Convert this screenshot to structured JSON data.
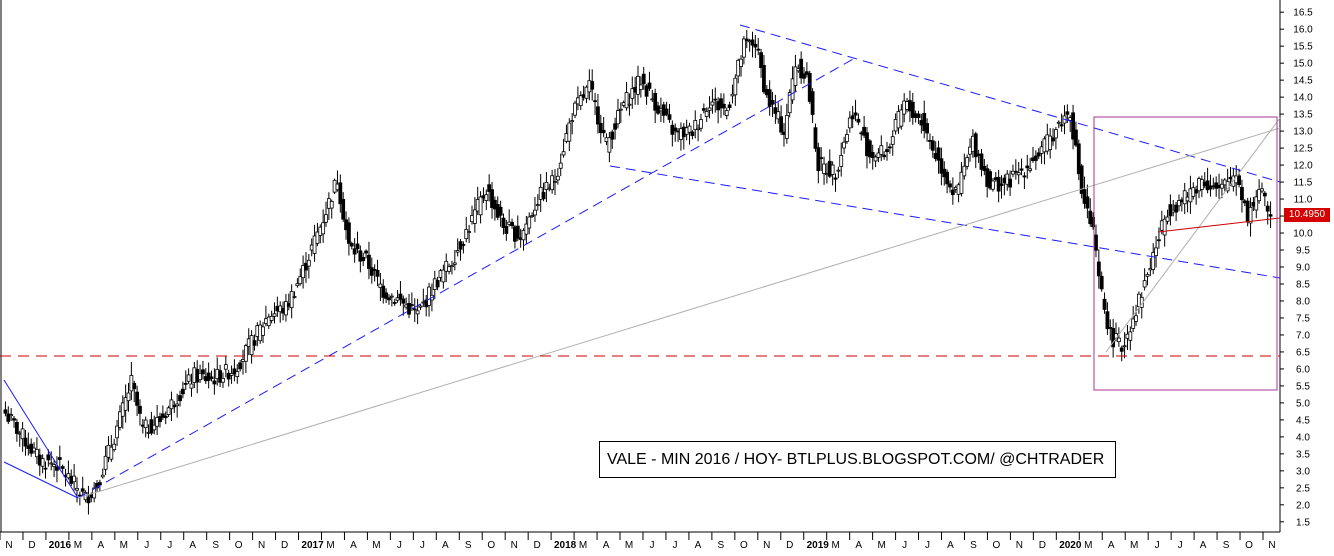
{
  "title": "VALE - MIN 2016 / HOY- BTLPLUS.BLOGSPOT.COM/ @CHTRADER",
  "last_price_label": "10.4950",
  "colors": {
    "up_candle": "#ffffff",
    "down_candle": "#000000",
    "trendline_blue": "#1a1aff",
    "support_red": "#cc0000",
    "box_magenta": "#aa3399",
    "gray_line": "#b0b0b0"
  },
  "chart_data": {
    "type": "candlestick",
    "title": "VALE - MIN 2016 / HOY- BTLPLUS.BLOGSPOT.COM/ @CHTRADER",
    "ylim": [
      1.2,
      16.8
    ],
    "y_ticks": [
      "1.5",
      "2.0",
      "2.5",
      "3.0",
      "3.5",
      "4.0",
      "4.5",
      "5.0",
      "5.5",
      "6.0",
      "6.5",
      "7.0",
      "7.5",
      "8.0",
      "8.5",
      "9.0",
      "9.5",
      "10.0",
      "10.5",
      "11.0",
      "11.5",
      "12.0",
      "12.5",
      "13.0",
      "13.5",
      "14.0",
      "14.5",
      "15.0",
      "15.5",
      "16.0",
      "16.5"
    ],
    "x_ticks": [
      "N",
      "D",
      "2016",
      "M",
      "A",
      "M",
      "J",
      "J",
      "A",
      "S",
      "O",
      "N",
      "D",
      "2017",
      "M",
      "A",
      "M",
      "J",
      "J",
      "A",
      "S",
      "O",
      "N",
      "D",
      "2018",
      "M",
      "A",
      "M",
      "J",
      "J",
      "A",
      "S",
      "O",
      "N",
      "D",
      "2019",
      "M",
      "A",
      "M",
      "J",
      "J",
      "A",
      "S",
      "O",
      "N",
      "D",
      "2020",
      "M",
      "A",
      "M",
      "J",
      "J",
      "A",
      "S",
      "O",
      "N"
    ],
    "bold_x_ticks": [
      "2016",
      "2017",
      "2018",
      "2019",
      "2020"
    ],
    "last_price": 10.495,
    "series_anchor_closes": [
      [
        0,
        4.7
      ],
      [
        6,
        4.0
      ],
      [
        12,
        3.3
      ],
      [
        18,
        3.2
      ],
      [
        24,
        2.6
      ],
      [
        28,
        2.2
      ],
      [
        32,
        2.6
      ],
      [
        38,
        4.0
      ],
      [
        44,
        5.6
      ],
      [
        48,
        4.2
      ],
      [
        54,
        4.5
      ],
      [
        60,
        5.2
      ],
      [
        66,
        5.8
      ],
      [
        72,
        5.7
      ],
      [
        80,
        6.0
      ],
      [
        84,
        6.5
      ],
      [
        92,
        7.6
      ],
      [
        98,
        7.8
      ],
      [
        104,
        8.9
      ],
      [
        110,
        10.2
      ],
      [
        116,
        11.6
      ],
      [
        120,
        9.6
      ],
      [
        126,
        9.2
      ],
      [
        132,
        8.3
      ],
      [
        138,
        8.0
      ],
      [
        144,
        7.6
      ],
      [
        150,
        8.5
      ],
      [
        156,
        9.2
      ],
      [
        162,
        10.2
      ],
      [
        168,
        11.3
      ],
      [
        174,
        10.2
      ],
      [
        180,
        9.9
      ],
      [
        186,
        11.0
      ],
      [
        192,
        11.6
      ],
      [
        198,
        13.5
      ],
      [
        204,
        14.3
      ],
      [
        210,
        12.6
      ],
      [
        216,
        13.8
      ],
      [
        222,
        14.5
      ],
      [
        228,
        13.7
      ],
      [
        234,
        12.9
      ],
      [
        240,
        13.0
      ],
      [
        246,
        13.9
      ],
      [
        252,
        13.6
      ],
      [
        258,
        15.5
      ],
      [
        262,
        15.6
      ],
      [
        266,
        14.0
      ],
      [
        272,
        13.0
      ],
      [
        276,
        15.0
      ],
      [
        280,
        14.6
      ],
      [
        284,
        12.0
      ],
      [
        290,
        11.8
      ],
      [
        296,
        13.6
      ],
      [
        302,
        12.3
      ],
      [
        308,
        12.4
      ],
      [
        314,
        13.8
      ],
      [
        320,
        13.3
      ],
      [
        326,
        12.1
      ],
      [
        332,
        11.1
      ],
      [
        338,
        12.7
      ],
      [
        344,
        11.4
      ],
      [
        350,
        11.5
      ],
      [
        356,
        11.9
      ],
      [
        362,
        12.4
      ],
      [
        368,
        13.2
      ],
      [
        372,
        13.6
      ],
      [
        376,
        11.2
      ],
      [
        380,
        10.0
      ],
      [
        382,
        8.6
      ],
      [
        386,
        7.0
      ],
      [
        390,
        6.6
      ],
      [
        396,
        8.0
      ],
      [
        402,
        9.6
      ],
      [
        406,
        10.7
      ],
      [
        412,
        11.0
      ],
      [
        418,
        11.6
      ],
      [
        424,
        11.2
      ],
      [
        430,
        11.8
      ],
      [
        434,
        10.5
      ],
      [
        438,
        11.3
      ],
      [
        442,
        10.495
      ]
    ]
  }
}
